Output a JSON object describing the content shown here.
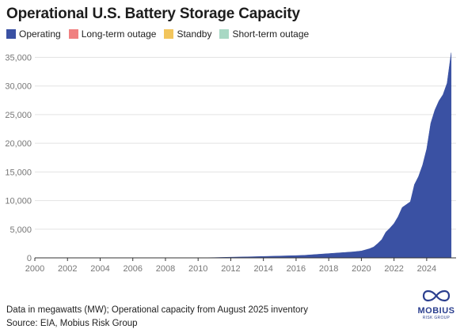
{
  "title": "Operational U.S. Battery Storage Capacity",
  "legend": [
    {
      "label": "Operating",
      "color": "#3a51a3"
    },
    {
      "label": "Long-term outage",
      "color": "#f08080"
    },
    {
      "label": "Standby",
      "color": "#f2c55c"
    },
    {
      "label": "Short-term outage",
      "color": "#a8d8c4"
    }
  ],
  "footnote": {
    "line1": "Data in megawatts (MW); Operational capacity from August 2025 inventory",
    "line2": "Source: EIA, Mobius Risk Group"
  },
  "logo": {
    "name": "MOBIUS",
    "sub": "RISK GROUP",
    "icon": "infinity-icon",
    "color": "#2b3f8f"
  },
  "chart_data": {
    "type": "area",
    "title": "Operational U.S. Battery Storage Capacity",
    "xlabel": "",
    "ylabel": "",
    "xlim": [
      2000,
      2025.8
    ],
    "ylim": [
      0,
      37000
    ],
    "x_ticks": [
      2000,
      2002,
      2004,
      2006,
      2008,
      2010,
      2012,
      2014,
      2016,
      2018,
      2020,
      2022,
      2024
    ],
    "x_tick_labels": [
      "2000",
      "2002",
      "2004",
      "2006",
      "2008",
      "2010",
      "2012",
      "2014",
      "2016",
      "2018",
      "2020",
      "2022",
      "2024"
    ],
    "y_ticks": [
      0,
      5000,
      10000,
      15000,
      20000,
      25000,
      30000,
      35000
    ],
    "y_tick_labels": [
      "0",
      "5,000",
      "10,000",
      "15,000",
      "20,000",
      "25,000",
      "30,000",
      "35,000"
    ],
    "grid": "horizontal",
    "legend_position": "top-left",
    "series": [
      {
        "name": "Operating",
        "color": "#3a51a3",
        "x": [
          2000,
          2003,
          2006,
          2009,
          2010,
          2011,
          2012,
          2013,
          2014,
          2015,
          2016,
          2016.5,
          2017,
          2017.5,
          2018,
          2018.5,
          2019,
          2019.5,
          2020,
          2020.25,
          2020.5,
          2020.75,
          2021,
          2021.25,
          2021.5,
          2021.75,
          2022,
          2022.25,
          2022.5,
          2022.75,
          2023,
          2023.25,
          2023.5,
          2023.75,
          2024,
          2024.25,
          2024.5,
          2024.75,
          2025,
          2025.25,
          2025.5
        ],
        "values": [
          0,
          0,
          0,
          0,
          10,
          50,
          120,
          180,
          250,
          320,
          400,
          450,
          550,
          650,
          750,
          850,
          950,
          1050,
          1200,
          1400,
          1600,
          1900,
          2500,
          3200,
          4500,
          5200,
          6000,
          7200,
          8800,
          9300,
          9800,
          12800,
          14200,
          16200,
          19000,
          23500,
          25800,
          27400,
          28500,
          30500,
          35800
        ]
      },
      {
        "name": "Long-term outage",
        "color": "#f08080",
        "x": [],
        "values": []
      },
      {
        "name": "Standby",
        "color": "#f2c55c",
        "x": [],
        "values": []
      },
      {
        "name": "Short-term outage",
        "color": "#a8d8c4",
        "x": [],
        "values": []
      }
    ]
  }
}
